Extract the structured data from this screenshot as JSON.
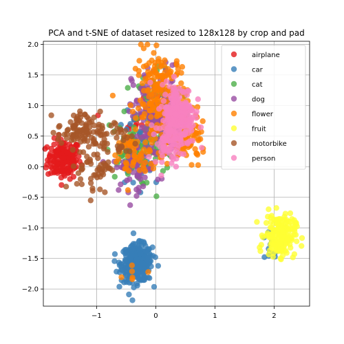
{
  "chart_data": {
    "type": "scatter",
    "title": "PCA and t-SNE of dataset resized to 128x128 by crop and pad",
    "xlabel": "",
    "ylabel": "",
    "xlim": [
      -1.9,
      2.6
    ],
    "ylim": [
      -2.28,
      2.05
    ],
    "x_ticks": [
      -1,
      0,
      1,
      2
    ],
    "y_ticks": [
      -2.0,
      -1.5,
      -1.0,
      -0.5,
      0.0,
      0.5,
      1.0,
      1.5,
      2.0
    ],
    "grid": true,
    "legend_position": "top-right",
    "series": [
      {
        "name": "airplane",
        "color": "#e41a1c",
        "clusters": [
          {
            "cx": -1.55,
            "cy": 0.12,
            "sx": 0.14,
            "sy": 0.16,
            "n": 170
          },
          {
            "cx": -0.35,
            "cy": 0.55,
            "sx": 0.18,
            "sy": 0.25,
            "n": 25
          },
          {
            "cx": 0.05,
            "cy": 0.7,
            "sx": 0.12,
            "sy": 0.2,
            "n": 15
          }
        ]
      },
      {
        "name": "car",
        "color": "#377eb8",
        "clusters": [
          {
            "cx": -0.32,
            "cy": -1.58,
            "sx": 0.13,
            "sy": 0.15,
            "n": 320
          },
          {
            "cx": -0.35,
            "cy": 0.25,
            "sx": 0.15,
            "sy": 0.3,
            "n": 40
          },
          {
            "cx": 1.95,
            "cy": -1.3,
            "sx": 0.12,
            "sy": 0.15,
            "n": 18
          }
        ]
      },
      {
        "name": "cat",
        "color": "#4daf4a",
        "clusters": [
          {
            "cx": 0.05,
            "cy": 0.8,
            "sx": 0.2,
            "sy": 0.45,
            "n": 150
          },
          {
            "cx": -0.45,
            "cy": 0.2,
            "sx": 0.2,
            "sy": 0.25,
            "n": 60
          }
        ]
      },
      {
        "name": "dog",
        "color": "#984ea3",
        "clusters": [
          {
            "cx": 0.0,
            "cy": 0.85,
            "sx": 0.2,
            "sy": 0.4,
            "n": 150
          },
          {
            "cx": -0.35,
            "cy": 0.0,
            "sx": 0.18,
            "sy": 0.2,
            "n": 60
          }
        ]
      },
      {
        "name": "flower",
        "color": "#ff7f00",
        "clusters": [
          {
            "cx": 0.1,
            "cy": 1.1,
            "sx": 0.22,
            "sy": 0.4,
            "n": 220
          },
          {
            "cx": 0.55,
            "cy": 0.4,
            "sx": 0.15,
            "sy": 0.15,
            "n": 70
          },
          {
            "cx": -0.4,
            "cy": 0.15,
            "sx": 0.2,
            "sy": 0.25,
            "n": 50
          },
          {
            "cx": -0.4,
            "cy": -1.7,
            "sx": 0.12,
            "sy": 0.12,
            "n": 6
          }
        ]
      },
      {
        "name": "fruit",
        "color": "#ffff33",
        "clusters": [
          {
            "cx": 2.1,
            "cy": -1.12,
            "sx": 0.13,
            "sy": 0.17,
            "n": 180
          }
        ]
      },
      {
        "name": "motorbike",
        "color": "#a65628",
        "clusters": [
          {
            "cx": -1.3,
            "cy": 0.6,
            "sx": 0.18,
            "sy": 0.15,
            "n": 80
          },
          {
            "cx": -1.05,
            "cy": 0.05,
            "sx": 0.14,
            "sy": 0.25,
            "n": 60
          },
          {
            "cx": -0.7,
            "cy": 0.45,
            "sx": 0.2,
            "sy": 0.2,
            "n": 40
          }
        ]
      },
      {
        "name": "person",
        "color": "#f781bf",
        "clusters": [
          {
            "cx": 0.38,
            "cy": 0.85,
            "sx": 0.14,
            "sy": 0.25,
            "n": 240
          },
          {
            "cx": 0.22,
            "cy": 0.4,
            "sx": 0.12,
            "sy": 0.18,
            "n": 60
          }
        ]
      }
    ]
  }
}
